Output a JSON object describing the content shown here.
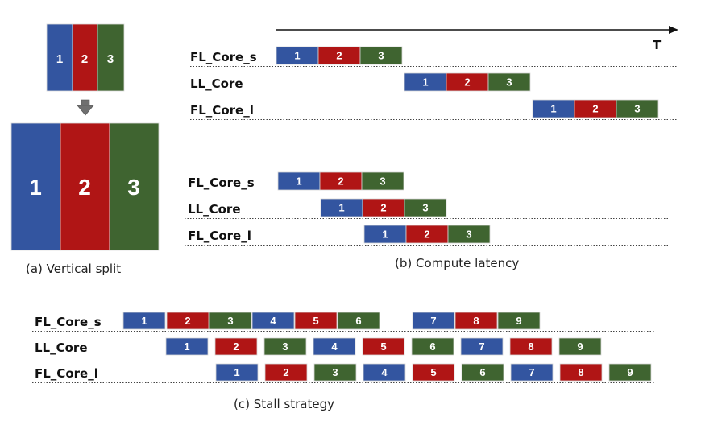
{
  "colors": {
    "blue": "#3355a0",
    "red": "#b01515",
    "green": "#3f6430",
    "rule": "#444444"
  },
  "time_axis_label": "T",
  "block_labels": [
    "1",
    "2",
    "3"
  ],
  "captions": {
    "a": "(a) Vertical split",
    "b": "(b) Compute latency",
    "c": "(c) Stall strategy"
  },
  "section_b1": {
    "rows": [
      {
        "label": "FL_Core_s",
        "blocks": [
          "1",
          "2",
          "3"
        ]
      },
      {
        "label": "LL_Core",
        "blocks": [
          "1",
          "2",
          "3"
        ]
      },
      {
        "label": "FL_Core_l",
        "blocks": [
          "1",
          "2",
          "3"
        ]
      }
    ]
  },
  "section_b2": {
    "rows": [
      {
        "label": "FL_Core_s",
        "blocks": [
          "1",
          "2",
          "3"
        ]
      },
      {
        "label": "LL_Core",
        "blocks": [
          "1",
          "2",
          "3"
        ]
      },
      {
        "label": "FL_Core_l",
        "blocks": [
          "1",
          "2",
          "3"
        ]
      }
    ]
  },
  "section_c": {
    "rows": [
      {
        "label": "FL_Core_s",
        "blocks": [
          "1",
          "2",
          "3",
          "4",
          "5",
          "6",
          "7",
          "8",
          "9"
        ]
      },
      {
        "label": "LL_Core",
        "blocks": [
          "1",
          "2",
          "3",
          "4",
          "5",
          "6",
          "7",
          "8",
          "9"
        ]
      },
      {
        "label": "FL_Core_l",
        "blocks": [
          "1",
          "2",
          "3",
          "4",
          "5",
          "6",
          "7",
          "8",
          "9"
        ]
      }
    ]
  }
}
